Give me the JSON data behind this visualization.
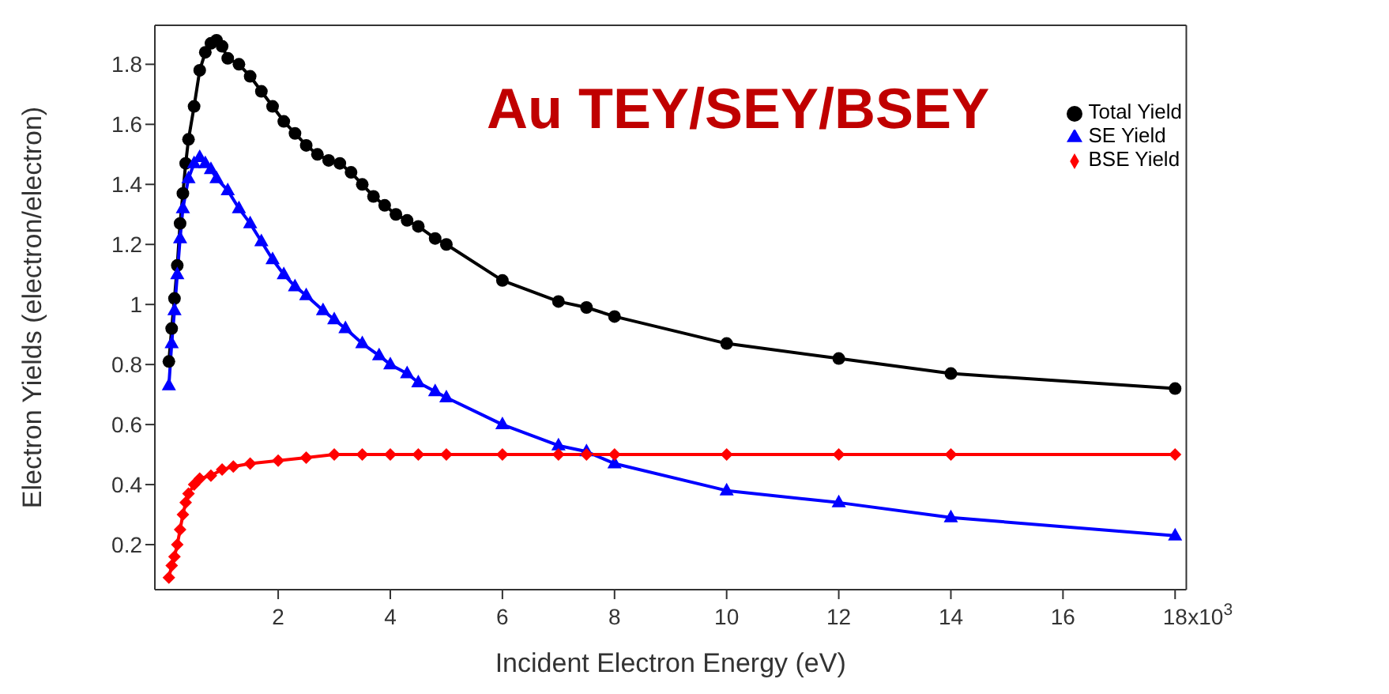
{
  "chart_data": {
    "type": "line",
    "title": "Au TEY/SEY/BSEY",
    "xlabel": "Incident Electron Energy (eV)",
    "ylabel": "Electron Yields (electron/electron)",
    "xlim": [
      -0.2,
      18.2
    ],
    "xticks": [
      2,
      4,
      6,
      8,
      10,
      12,
      14,
      16,
      18
    ],
    "annotations": [
      "x10$^{3}$"
    ],
    "ylim": [
      0.05,
      1.93
    ],
    "yticks": [
      0.2,
      0.4,
      0.6,
      0.8,
      1.0,
      1.2,
      1.4,
      1.6,
      1.8
    ],
    "legend": "top right",
    "series": [
      {
        "name": "Total Yield",
        "color": "#000000",
        "marker": "circle",
        "x": [
          0.05,
          0.1,
          0.15,
          0.2,
          0.25,
          0.3,
          0.35,
          0.4,
          0.5,
          0.6,
          0.7,
          0.8,
          0.9,
          1.0,
          1.1,
          1.3,
          1.5,
          1.7,
          1.9,
          2.1,
          2.3,
          2.5,
          2.7,
          2.9,
          3.1,
          3.3,
          3.5,
          3.7,
          3.9,
          4.1,
          4.3,
          4.5,
          4.8,
          5.0,
          6,
          7,
          7.5,
          8,
          10,
          12,
          14,
          18
        ],
        "values": [
          0.81,
          0.92,
          1.02,
          1.13,
          1.27,
          1.37,
          1.47,
          1.55,
          1.66,
          1.78,
          1.84,
          1.87,
          1.88,
          1.86,
          1.82,
          1.8,
          1.76,
          1.71,
          1.66,
          1.61,
          1.57,
          1.53,
          1.5,
          1.48,
          1.47,
          1.44,
          1.4,
          1.36,
          1.33,
          1.3,
          1.28,
          1.26,
          1.22,
          1.2,
          1.08,
          1.01,
          0.99,
          0.96,
          0.87,
          0.82,
          0.77,
          0.72
        ]
      },
      {
        "name": "SE Yield",
        "color": "#0000ff",
        "marker": "triangle",
        "x": [
          0.05,
          0.1,
          0.15,
          0.2,
          0.25,
          0.3,
          0.4,
          0.5,
          0.6,
          0.7,
          0.8,
          0.9,
          1.1,
          1.3,
          1.5,
          1.7,
          1.9,
          2.1,
          2.3,
          2.5,
          2.8,
          3.0,
          3.2,
          3.5,
          3.8,
          4.0,
          4.3,
          4.5,
          4.8,
          5.0,
          6,
          7,
          7.5,
          8,
          10,
          12,
          14,
          18
        ],
        "values": [
          0.73,
          0.87,
          0.98,
          1.1,
          1.22,
          1.32,
          1.42,
          1.47,
          1.49,
          1.47,
          1.45,
          1.42,
          1.38,
          1.32,
          1.27,
          1.21,
          1.15,
          1.1,
          1.06,
          1.03,
          0.98,
          0.95,
          0.92,
          0.87,
          0.83,
          0.8,
          0.77,
          0.74,
          0.71,
          0.69,
          0.6,
          0.53,
          0.51,
          0.47,
          0.38,
          0.34,
          0.29,
          0.23
        ]
      },
      {
        "name": "BSE Yield",
        "color": "#ff0000",
        "marker": "diamond",
        "x": [
          0.05,
          0.1,
          0.15,
          0.2,
          0.25,
          0.3,
          0.35,
          0.4,
          0.5,
          0.6,
          0.8,
          1.0,
          1.2,
          1.5,
          2.0,
          2.5,
          3.0,
          3.5,
          4.0,
          4.5,
          5.0,
          6,
          7,
          7.5,
          8,
          10,
          12,
          14,
          18
        ],
        "values": [
          0.09,
          0.13,
          0.16,
          0.2,
          0.25,
          0.3,
          0.34,
          0.37,
          0.4,
          0.42,
          0.43,
          0.45,
          0.46,
          0.47,
          0.48,
          0.49,
          0.5,
          0.5,
          0.5,
          0.5,
          0.5,
          0.5,
          0.5,
          0.5,
          0.5,
          0.5,
          0.5,
          0.5,
          0.5
        ]
      }
    ]
  }
}
